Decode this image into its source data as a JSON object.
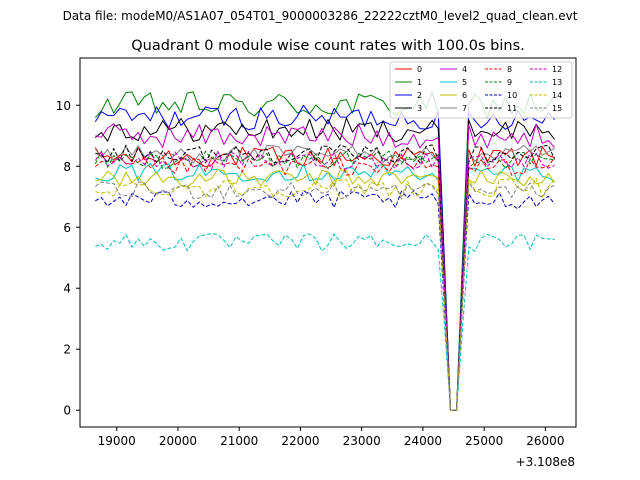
{
  "chart_data": {
    "type": "line",
    "suptitle": "Data file: modeM0/AS1A07_054T01_9000003286_22222cztM0_level2_quad_clean.evt",
    "title": "Quadrant 0 module wise count rates with 100.0s bins.",
    "xlabel": "",
    "ylabel": "",
    "x_offset_label": "+3.108e8",
    "xlim": [
      18400,
      26500
    ],
    "ylim": [
      -0.55,
      11.55
    ],
    "x_ticks": [
      19000,
      20000,
      21000,
      22000,
      23000,
      24000,
      25000,
      26000
    ],
    "y_ticks": [
      0,
      2,
      4,
      6,
      8,
      10
    ],
    "x_tick_labels": [
      "19000",
      "20000",
      "21000",
      "22000",
      "23000",
      "24000",
      "25000",
      "26000"
    ],
    "y_tick_labels": [
      "0",
      "2",
      "4",
      "6",
      "8",
      "10"
    ],
    "grid": false,
    "legend_position": "top-right",
    "x_start": 18650,
    "x_step": 100,
    "num_points": 76,
    "dip": {
      "start": 24250,
      "bottom_start": 24450,
      "bottom_end": 24550,
      "end": 24750
    },
    "series": [
      {
        "name": "0",
        "color": "#ff0000",
        "dashed": false,
        "mean": 8.3,
        "noise": 0.35
      },
      {
        "name": "1",
        "color": "#008000",
        "dashed": false,
        "mean": 10.0,
        "noise": 0.45
      },
      {
        "name": "2",
        "color": "#0000ff",
        "dashed": false,
        "mean": 9.6,
        "noise": 0.4
      },
      {
        "name": "3",
        "color": "#000000",
        "dashed": false,
        "mean": 9.2,
        "noise": 0.4
      },
      {
        "name": "4",
        "color": "#bf00bf",
        "dashed": false,
        "mean": 9.0,
        "noise": 0.4
      },
      {
        "name": "5",
        "color": "#00bfbf",
        "dashed": false,
        "mean": 7.8,
        "noise": 0.3
      },
      {
        "name": "6",
        "color": "#bfbf00",
        "dashed": false,
        "mean": 7.6,
        "noise": 0.3
      },
      {
        "name": "7",
        "color": "#808080",
        "dashed": false,
        "mean": 8.4,
        "noise": 0.3
      },
      {
        "name": "8",
        "color": "#ff0000",
        "dashed": true,
        "mean": 8.0,
        "noise": 0.3
      },
      {
        "name": "9",
        "color": "#008000",
        "dashed": true,
        "mean": 8.2,
        "noise": 0.3
      },
      {
        "name": "10",
        "color": "#0000bf",
        "dashed": true,
        "mean": 6.9,
        "noise": 0.3
      },
      {
        "name": "11",
        "color": "#000000",
        "dashed": true,
        "mean": 8.4,
        "noise": 0.3
      },
      {
        "name": "12",
        "color": "#bf00bf",
        "dashed": true,
        "mean": 8.2,
        "noise": 0.3
      },
      {
        "name": "13",
        "color": "#00bfbf",
        "dashed": true,
        "mean": 5.5,
        "noise": 0.3
      },
      {
        "name": "14",
        "color": "#bfbf00",
        "dashed": true,
        "mean": 7.3,
        "noise": 0.3
      },
      {
        "name": "15",
        "color": "#808080",
        "dashed": true,
        "mean": 7.2,
        "noise": 0.3
      }
    ]
  }
}
